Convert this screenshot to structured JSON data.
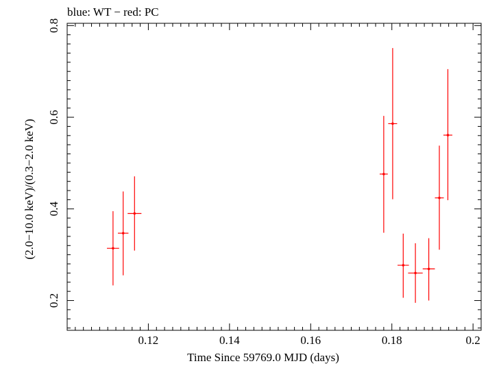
{
  "chart_data": {
    "type": "scatter",
    "title": "blue: WT − red: PC",
    "xlabel": "Time Since 59769.0 MJD (days)",
    "ylabel": "(2.0−10.0 keV)/(0.3−2.0 keV)",
    "xlim": [
      0.1,
      0.202
    ],
    "ylim": [
      0.135,
      0.805
    ],
    "xticks": [
      0.12,
      0.14,
      0.16,
      0.18,
      0.2
    ],
    "xtick_labels": [
      "0.12",
      "0.14",
      "0.16",
      "0.18",
      "0.2"
    ],
    "yticks": [
      0.2,
      0.4,
      0.6,
      0.8
    ],
    "ytick_labels": [
      "0.2",
      "0.4",
      "0.6",
      "0.8"
    ],
    "grid": false,
    "series": [
      {
        "color": "#ff0000",
        "points": [
          {
            "x": 0.1113,
            "xerr": 0.0015,
            "y": 0.314,
            "yerr_low": 0.081,
            "yerr_high": 0.081
          },
          {
            "x": 0.1138,
            "xerr": 0.0013,
            "y": 0.347,
            "yerr_low": 0.092,
            "yerr_high": 0.091
          },
          {
            "x": 0.1166,
            "xerr": 0.0017,
            "y": 0.39,
            "yerr_low": 0.081,
            "yerr_high": 0.081
          },
          {
            "x": 0.178,
            "xerr": 0.001,
            "y": 0.476,
            "yerr_low": 0.128,
            "yerr_high": 0.127
          },
          {
            "x": 0.1802,
            "xerr": 0.0011,
            "y": 0.586,
            "yerr_low": 0.165,
            "yerr_high": 0.165
          },
          {
            "x": 0.1828,
            "xerr": 0.0014,
            "y": 0.277,
            "yerr_low": 0.071,
            "yerr_high": 0.069
          },
          {
            "x": 0.1858,
            "xerr": 0.0018,
            "y": 0.26,
            "yerr_low": 0.065,
            "yerr_high": 0.065
          },
          {
            "x": 0.1891,
            "xerr": 0.0015,
            "y": 0.269,
            "yerr_low": 0.069,
            "yerr_high": 0.067
          },
          {
            "x": 0.1917,
            "xerr": 0.0011,
            "y": 0.424,
            "yerr_low": 0.113,
            "yerr_high": 0.114
          },
          {
            "x": 0.1938,
            "xerr": 0.0011,
            "y": 0.561,
            "yerr_low": 0.142,
            "yerr_high": 0.144
          }
        ]
      }
    ]
  }
}
